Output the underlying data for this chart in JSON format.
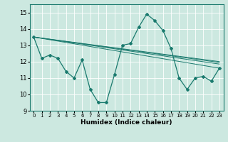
{
  "title": "",
  "xlabel": "Humidex (Indice chaleur)",
  "bg_color": "#cce8e0",
  "line_color": "#1a7a6e",
  "grid_color": "#ffffff",
  "xlim": [
    -0.5,
    23.5
  ],
  "ylim": [
    9,
    15.5
  ],
  "yticks": [
    9,
    10,
    11,
    12,
    13,
    14,
    15
  ],
  "xticks": [
    0,
    1,
    2,
    3,
    4,
    5,
    6,
    7,
    8,
    9,
    10,
    11,
    12,
    13,
    14,
    15,
    16,
    17,
    18,
    19,
    20,
    21,
    22,
    23
  ],
  "series": [
    [
      0,
      13.5
    ],
    [
      1,
      12.2
    ],
    [
      2,
      12.4
    ],
    [
      3,
      12.2
    ],
    [
      4,
      11.4
    ],
    [
      5,
      11.0
    ],
    [
      6,
      12.1
    ],
    [
      7,
      10.3
    ],
    [
      8,
      9.5
    ],
    [
      9,
      9.5
    ],
    [
      10,
      11.2
    ],
    [
      11,
      13.0
    ],
    [
      12,
      13.1
    ],
    [
      13,
      14.1
    ],
    [
      14,
      14.9
    ],
    [
      15,
      14.5
    ],
    [
      16,
      13.9
    ],
    [
      17,
      12.8
    ],
    [
      18,
      11.0
    ],
    [
      19,
      10.3
    ],
    [
      20,
      11.0
    ],
    [
      21,
      11.1
    ],
    [
      22,
      10.8
    ],
    [
      23,
      11.6
    ]
  ],
  "fan_lines": [
    {
      "x": [
        0,
        23
      ],
      "y": [
        13.5,
        11.6
      ]
    },
    {
      "x": [
        0,
        23
      ],
      "y": [
        13.5,
        12.0
      ]
    },
    {
      "x": [
        0,
        23
      ],
      "y": [
        13.5,
        11.85
      ]
    },
    {
      "x": [
        0,
        23
      ],
      "y": [
        13.5,
        11.95
      ]
    }
  ]
}
